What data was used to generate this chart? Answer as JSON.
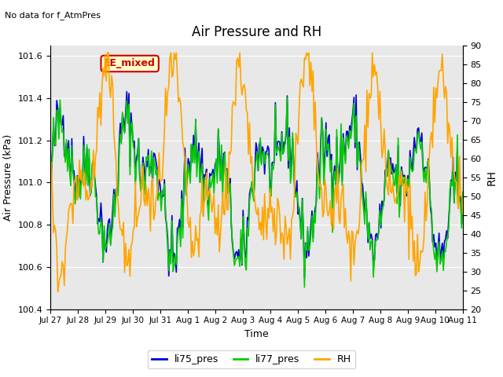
{
  "title": "Air Pressure and RH",
  "top_left_text": "No data for f_AtmPres",
  "annotation_text": "EE_mixed",
  "xlabel": "Time",
  "ylabel_left": "Air Pressure (kPa)",
  "ylabel_right": "RH",
  "ylim_left": [
    100.4,
    101.65
  ],
  "ylim_right": [
    20,
    90
  ],
  "yticks_left": [
    100.4,
    100.6,
    100.8,
    101.0,
    101.2,
    101.4,
    101.6
  ],
  "yticks_right": [
    20,
    25,
    30,
    35,
    40,
    45,
    50,
    55,
    60,
    65,
    70,
    75,
    80,
    85,
    90
  ],
  "x_tick_labels": [
    "Jul 27",
    "Jul 28",
    "Jul 29",
    "Jul 30",
    "Jul 31",
    "Aug 1",
    "Aug 2",
    "Aug 3",
    "Aug 4",
    "Aug 5",
    "Aug 6",
    "Aug 7",
    "Aug 8",
    "Aug 9",
    "Aug 10",
    "Aug 11"
  ],
  "color_li75": "#0000cc",
  "color_li77": "#00cc00",
  "color_rh": "#ffa500",
  "bg_color": "#e8e8e8",
  "annotation_bg": "#ffffcc",
  "annotation_border": "#cc0000",
  "annotation_text_color": "#cc0000",
  "grid_color": "#ffffff",
  "seed": 42
}
